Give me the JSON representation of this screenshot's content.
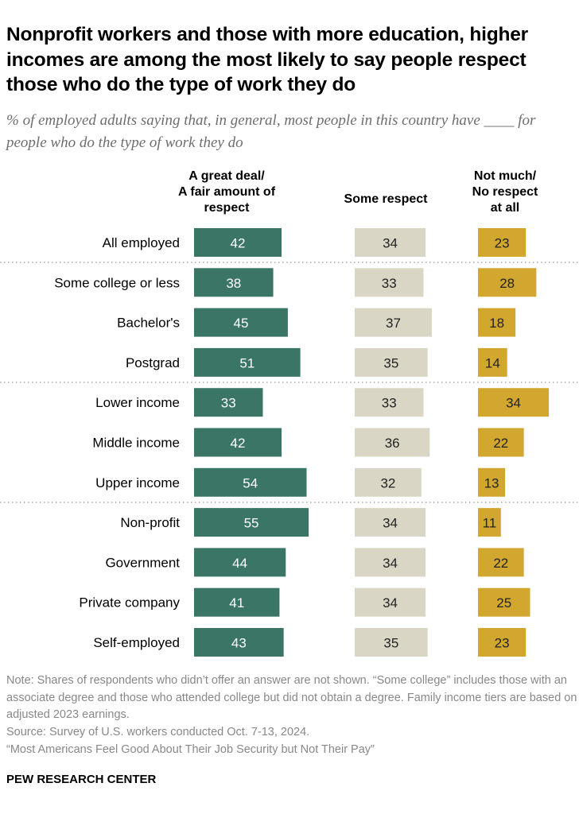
{
  "title": "Nonprofit workers and those with more education, higher incomes are among the most likely to say people respect those who do the type of work they do",
  "subtitle": "% of employed adults saying that, in general, most people in this country have ____ for people who do the type of work they do",
  "chart_data": {
    "type": "bar",
    "orientation": "horizontal",
    "categories": [
      "All employed",
      "Some college or less",
      "Bachelor's",
      "Postgrad",
      "Lower income",
      "Middle income",
      "Upper income",
      "Non-profit",
      "Government",
      "Private company",
      "Self-employed"
    ],
    "groups_separated_after": [
      "All employed",
      "Postgrad",
      "Upper income"
    ],
    "series": [
      {
        "name": "A great deal/ A fair amount of respect",
        "color": "#3a7565",
        "values": [
          42,
          38,
          45,
          51,
          33,
          42,
          54,
          55,
          44,
          41,
          43
        ]
      },
      {
        "name": "Some respect",
        "color": "#dad6c5",
        "values": [
          34,
          33,
          37,
          35,
          33,
          36,
          32,
          34,
          34,
          34,
          35
        ]
      },
      {
        "name": "Not much/ No respect at all",
        "color": "#d2a730",
        "values": [
          23,
          28,
          18,
          14,
          34,
          22,
          13,
          11,
          22,
          25,
          23
        ]
      }
    ]
  },
  "headers": [
    "A great deal/\nA fair amount of\nrespect",
    "Some respect",
    "Not much/\nNo respect\nat all"
  ],
  "note": "Note: Shares of respondents who didn’t offer an answer are not shown. “Some college” includes those with an associate degree and those who attended college but did not obtain a degree. Family income tiers are based on adjusted 2023 earnings.",
  "source": "Source: Survey of U.S. workers conducted Oct. 7-13, 2024.",
  "report": "“Most Americans Feel Good About Their Job Security but Not Their Pay”",
  "brand": "PEW RESEARCH CENTER"
}
